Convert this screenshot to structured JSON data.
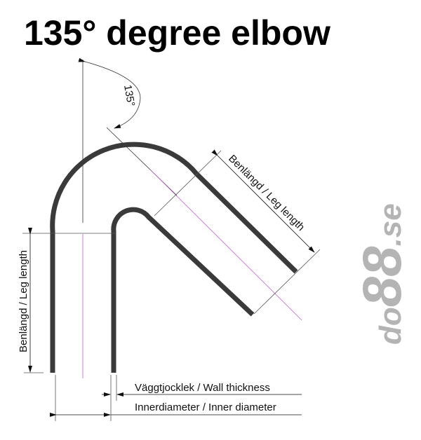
{
  "title": "135° degree elbow",
  "angle_label": "135°",
  "labels": {
    "leg_length_diagonal": "Benlängd / Leg length",
    "leg_length_vertical": "Benlängd / Leg length",
    "wall_thickness": "Väggtjocklek / Wall thickness",
    "inner_diameter": "Innerdiameter / Inner diameter"
  },
  "logo": {
    "text": "do88.se"
  },
  "colors": {
    "tube": "#3a3a3a",
    "centerline": "#c060d0",
    "logo": "#b4b4b4"
  }
}
